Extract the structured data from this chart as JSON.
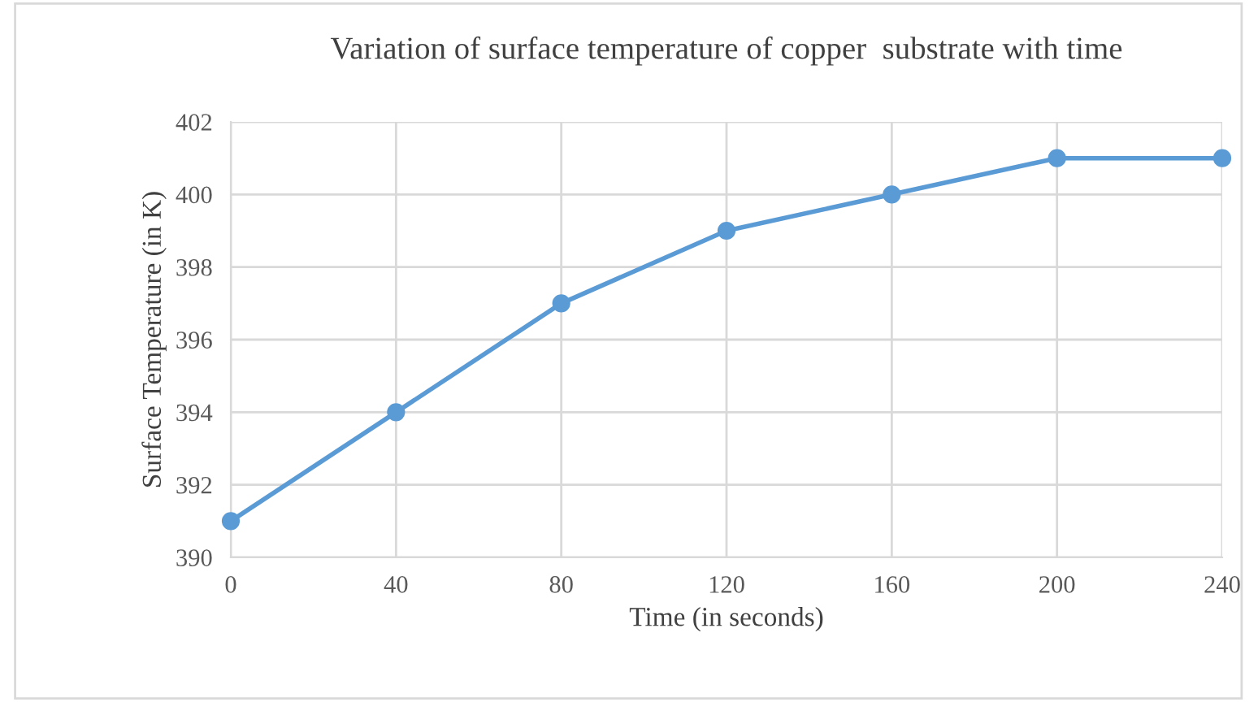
{
  "chart_data": {
    "type": "line",
    "title": "Variation of surface temperature of copper  substrate with time",
    "xlabel": "Time (in seconds)",
    "ylabel": "Surface Temperature (in K)",
    "x": [
      0,
      40,
      80,
      120,
      160,
      200,
      240
    ],
    "series": [
      {
        "color": "#5b9bd5",
        "values": [
          391,
          394,
          397,
          399,
          400,
          401,
          401
        ]
      }
    ],
    "xlim": [
      0,
      240
    ],
    "xticks": [
      0,
      40,
      80,
      120,
      160,
      200,
      240
    ],
    "ylim": [
      390,
      402
    ],
    "yticks": [
      390,
      392,
      394,
      396,
      398,
      400,
      402
    ],
    "grid": true,
    "marker": "circle",
    "line_style": "solid"
  }
}
